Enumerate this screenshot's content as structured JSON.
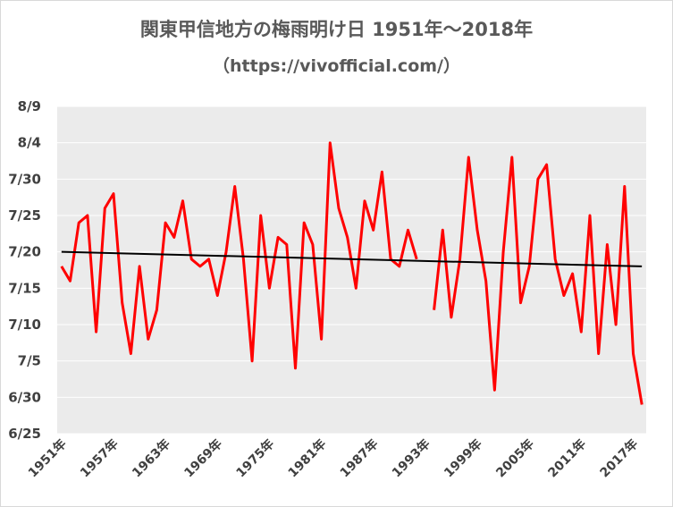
{
  "chart_data": {
    "type": "line",
    "title": "関東甲信地方の梅雨明け日 1951年～2018年",
    "subtitle": "（https://vivofficial.com/）",
    "y_tick_labels": [
      "6/25",
      "6/30",
      "7/5",
      "7/10",
      "7/15",
      "7/20",
      "7/25",
      "7/30",
      "8/4",
      "8/9"
    ],
    "y_range": [
      "6/25",
      "8/9"
    ],
    "x_tick_labels": [
      "1951年",
      "1957年",
      "1963年",
      "1969年",
      "1975年",
      "1981年",
      "1987年",
      "1993年",
      "1999年",
      "2005年",
      "2011年",
      "2017年"
    ],
    "grid": "horizontal",
    "legend": "none",
    "colors": {
      "series": "#ff0000",
      "trend": "#000000",
      "plot_background": "#ebebeb",
      "gridline": "#ffffff"
    },
    "series": [
      {
        "x": [
          1951,
          1952,
          1953,
          1954,
          1955,
          1956,
          1957,
          1958,
          1959,
          1960,
          1961,
          1962,
          1963,
          1964,
          1965,
          1966,
          1967,
          1968,
          1969,
          1970,
          1971,
          1972,
          1973,
          1974,
          1975,
          1976,
          1977,
          1978,
          1979,
          1980,
          1981,
          1982,
          1983,
          1984,
          1985,
          1986,
          1987,
          1988,
          1989,
          1990,
          1991,
          1992,
          1993,
          1994,
          1995,
          1996,
          1997,
          1998,
          1999,
          2000,
          2001,
          2002,
          2003,
          2004,
          2005,
          2006,
          2007,
          2008,
          2009,
          2010,
          2011,
          2012,
          2013,
          2014,
          2015,
          2016,
          2017,
          2018
        ],
        "y": [
          "7/18",
          "7/16",
          "7/24",
          "7/25",
          "7/9",
          "7/26",
          "7/28",
          "7/13",
          "7/6",
          "7/18",
          "7/8",
          "7/12",
          "7/24",
          "7/22",
          "7/27",
          "7/19",
          "7/18",
          "7/19",
          "7/14",
          "7/20",
          "7/29",
          "7/19",
          "7/5",
          "7/25",
          "7/15",
          "7/22",
          "7/21",
          "7/4",
          "7/24",
          "7/21",
          "7/8",
          "8/4",
          "7/26",
          "7/22",
          "7/15",
          "7/27",
          "7/23",
          "7/31",
          "7/19",
          "7/18",
          "7/23",
          "7/19",
          null,
          "7/12",
          "7/23",
          "7/11",
          "7/19",
          "8/2",
          "7/23",
          "7/16",
          "7/1",
          "7/20",
          "8/2",
          "7/13",
          "7/18",
          "7/30",
          "8/1",
          "7/19",
          "7/14",
          "7/17",
          "7/9",
          "7/25",
          "7/6",
          "7/21",
          "7/10",
          "7/29",
          "7/6",
          "6/29"
        ]
      },
      {
        "type": "trendline",
        "x": [
          1951,
          2018
        ],
        "y": [
          "7/20",
          "7/18"
        ]
      }
    ]
  }
}
